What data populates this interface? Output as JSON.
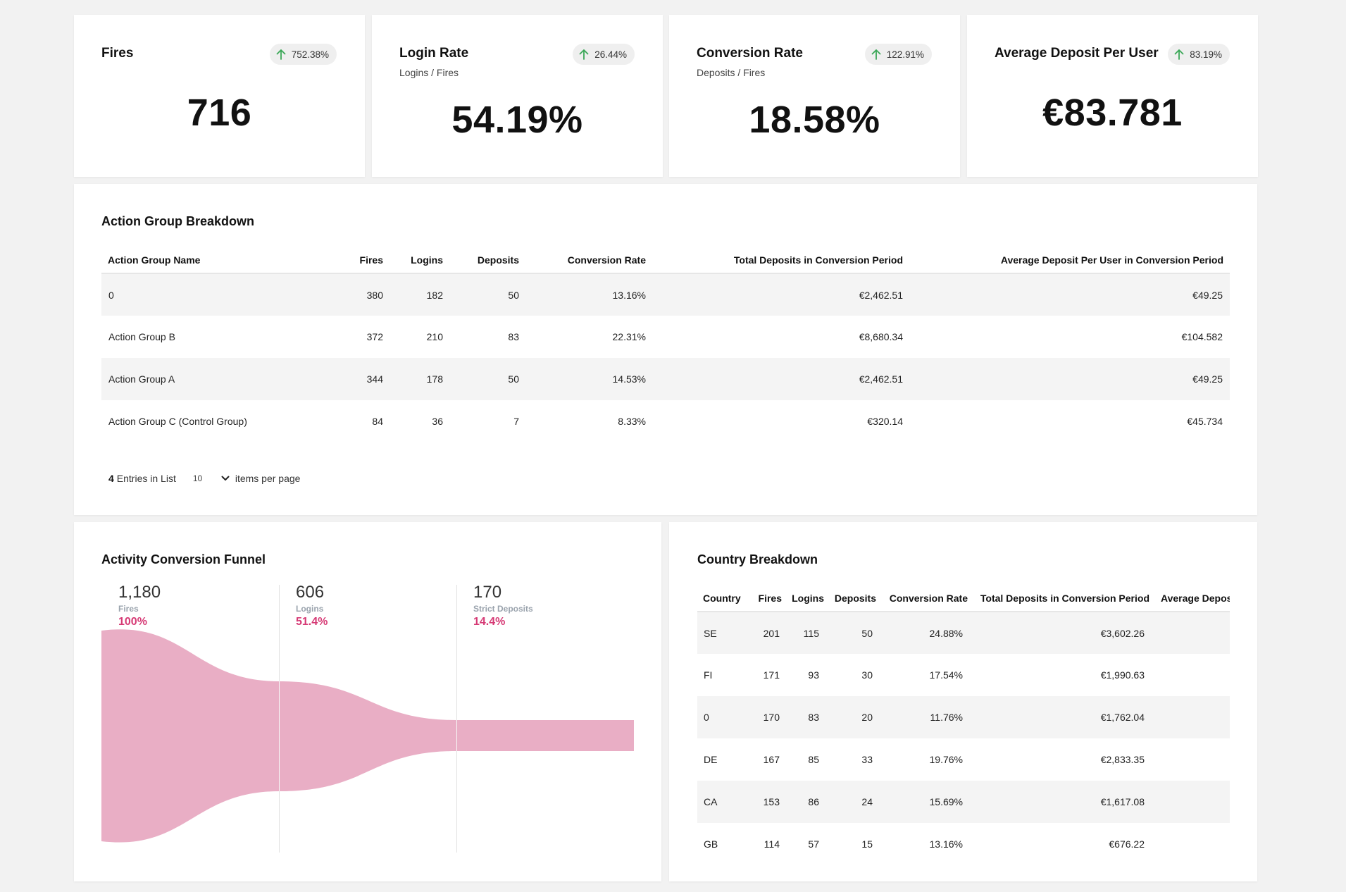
{
  "kpis": [
    {
      "title": "Fires",
      "subtitle": "",
      "badge": "752.38%",
      "value": "716"
    },
    {
      "title": "Login Rate",
      "subtitle": "Logins / Fires",
      "badge": "26.44%",
      "value": "54.19%"
    },
    {
      "title": "Conversion Rate",
      "subtitle": "Deposits / Fires",
      "badge": "122.91%",
      "value": "18.58%"
    },
    {
      "title": "Average Deposit Per User",
      "subtitle": "",
      "badge": "83.19%",
      "value": "€83.781"
    }
  ],
  "colors": {
    "trend_up": "#3aa757",
    "funnel_fill": "#e9aec5",
    "funnel_pct": "#d63a75"
  },
  "action_group": {
    "title": "Action Group Breakdown",
    "headers": [
      "Action Group Name",
      "Fires",
      "Logins",
      "Deposits",
      "Conversion Rate",
      "Total Deposits in Conversion Period",
      "Average Deposit Per User in Conversion Period"
    ],
    "rows": [
      [
        "0",
        "380",
        "182",
        "50",
        "13.16%",
        "€2,462.51",
        "€49.25"
      ],
      [
        "Action Group B",
        "372",
        "210",
        "83",
        "22.31%",
        "€8,680.34",
        "€104.582"
      ],
      [
        "Action Group A",
        "344",
        "178",
        "50",
        "14.53%",
        "€2,462.51",
        "€49.25"
      ],
      [
        "Action Group C (Control Group)",
        "84",
        "36",
        "7",
        "8.33%",
        "€320.14",
        "€45.734"
      ]
    ],
    "entries_count": "4",
    "entries_label": "Entries in List",
    "page_size": "10",
    "page_size_label": "items per page"
  },
  "funnel": {
    "title": "Activity Conversion Funnel",
    "stages": [
      {
        "value": "1,180",
        "label": "Fires",
        "pct": "100%"
      },
      {
        "value": "606",
        "label": "Logins",
        "pct": "51.4%"
      },
      {
        "value": "170",
        "label": "Strict Deposits",
        "pct": "14.4%"
      }
    ]
  },
  "country": {
    "title": "Country Breakdown",
    "headers": [
      "Country",
      "Fires",
      "Logins",
      "Deposits",
      "Conversion Rate",
      "Total Deposits in Conversion Period",
      "Average Deposi"
    ],
    "rows": [
      [
        "SE",
        "201",
        "115",
        "50",
        "24.88%",
        "€3,602.26",
        ""
      ],
      [
        "FI",
        "171",
        "93",
        "30",
        "17.54%",
        "€1,990.63",
        ""
      ],
      [
        "0",
        "170",
        "83",
        "20",
        "11.76%",
        "€1,762.04",
        ""
      ],
      [
        "DE",
        "167",
        "85",
        "33",
        "19.76%",
        "€2,833.35",
        ""
      ],
      [
        "CA",
        "153",
        "86",
        "24",
        "15.69%",
        "€1,617.08",
        ""
      ],
      [
        "GB",
        "114",
        "57",
        "15",
        "13.16%",
        "€676.22",
        ""
      ]
    ]
  }
}
